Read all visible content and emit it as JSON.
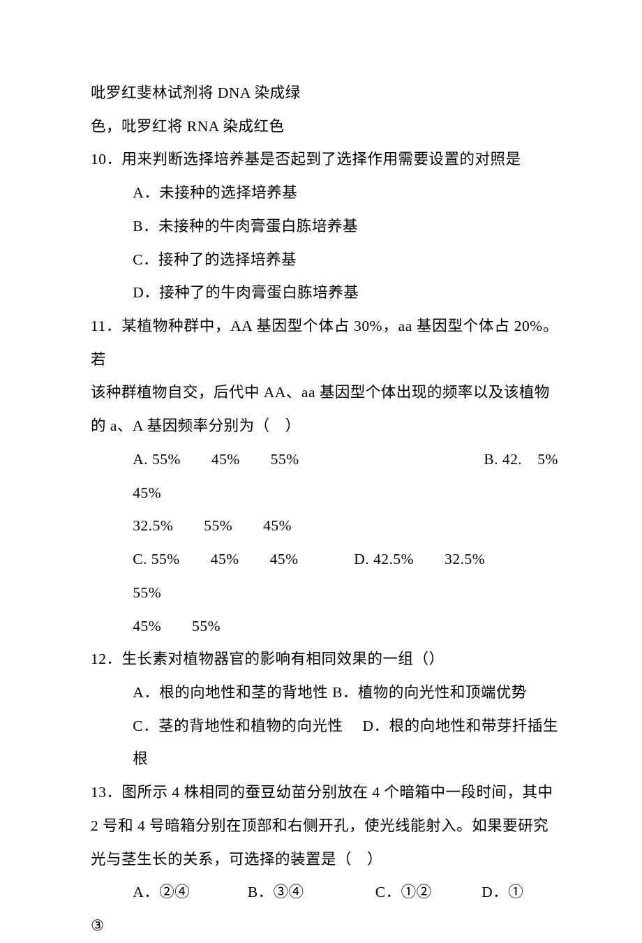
{
  "doc": {
    "line1": "吡罗红斐林试剂将 DNA 染成绿",
    "line2": "色，吡罗红将 RNA 染成红色",
    "q10": {
      "stem": "10．用来判断选择培养基是否起到了选择作用需要设置的对照是",
      "optA": "A．未接种的选择培养基",
      "optB": "B．未接种的牛肉膏蛋白胨培养基",
      "optC": "C．接种了的选择培养基",
      "optD": "D．接种了的牛肉膏蛋白胨培养基"
    },
    "q11": {
      "stem1": "11．某植物种群中，AA 基因型个体占 30%，aa 基因型个体占 20%。若",
      "stem2": "该种群植物自交，后代中 AA、aa 基因型个体出现的频率以及该植物",
      "stem3": "的 a、A 基因频率分别为（　）",
      "optA": "A. 55%　　45%　　55%　　45%",
      "optB": "B. 42.　5%",
      "optA2": "32.5%　　55%　　45%",
      "optC": "C. 55%　　45%　　45%　　55%",
      "optD": "D. 42.5%　　32.5%",
      "optD2": "45%　　55%"
    },
    "q12": {
      "stem": "12．生长素对植物器官的影响有相同效果的一组（）",
      "optAB": "A．根的向地性和茎的背地性 B．植物的向光性和顶端优势",
      "optCD": "C．茎的背地性和植物的向光性　 D．根的向地性和带芽扦插生根"
    },
    "q13": {
      "stem1": "13．图所示 4 株相同的蚕豆幼苗分别放在 4 个暗箱中一段时间，其中",
      "stem2": "2 号和 4 号暗箱分别在顶部和右侧开孔，使光线能射入。如果要研究",
      "stem3": "光与茎生长的关系，可选择的装置是（　）",
      "optA": "A．②④",
      "optB": "B．③④",
      "optC": "C．①②",
      "optD": "D．①",
      "optD2": "③"
    }
  }
}
